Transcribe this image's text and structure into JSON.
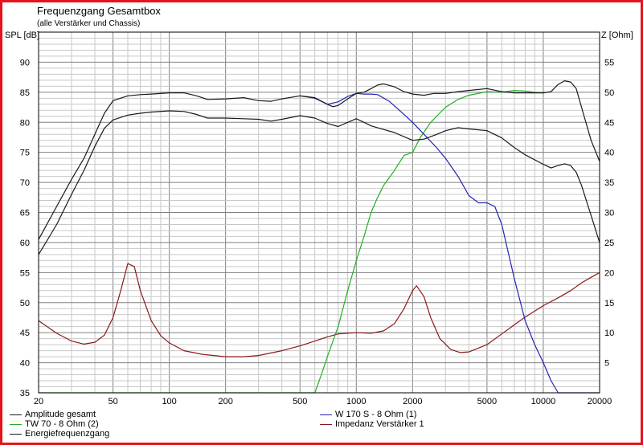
{
  "chart_data": {
    "type": "line",
    "title": "Frequenzgang Gesamtbox",
    "subtitle": "(alle Verstärker und Chassis)",
    "x_scale": "log",
    "xlim": [
      20,
      20000
    ],
    "ylabel_left": "SPL [dB]",
    "ylabel_right": "Z [Ohm]",
    "ylim_left": [
      35,
      95
    ],
    "ylim_right": [
      0,
      60
    ],
    "x_ticks": [
      "20",
      "50",
      "100",
      "200",
      "500",
      "1000",
      "2000",
      "5000",
      "10000",
      "20000"
    ],
    "y_ticks_left": [
      "35",
      "40",
      "45",
      "50",
      "55",
      "60",
      "65",
      "70",
      "75",
      "80",
      "85",
      "90"
    ],
    "y_ticks_right": [
      "5",
      "10",
      "15",
      "20",
      "25",
      "30",
      "35",
      "40",
      "45",
      "50",
      "55"
    ],
    "grid": true,
    "legend_position": "bottom",
    "series": [
      {
        "name": "Amplitude gesamt",
        "axis": "left",
        "color": "#1a1a1a",
        "points": [
          [
            20,
            58
          ],
          [
            25,
            63
          ],
          [
            30,
            68
          ],
          [
            35,
            72
          ],
          [
            40,
            76
          ],
          [
            45,
            79
          ],
          [
            50,
            80.4
          ],
          [
            60,
            81.2
          ],
          [
            70,
            81.5
          ],
          [
            80,
            81.7
          ],
          [
            100,
            81.9
          ],
          [
            120,
            81.8
          ],
          [
            140,
            81.3
          ],
          [
            160,
            80.7
          ],
          [
            200,
            80.7
          ],
          [
            250,
            80.6
          ],
          [
            300,
            80.5
          ],
          [
            350,
            80.2
          ],
          [
            400,
            80.5
          ],
          [
            500,
            81.1
          ],
          [
            600,
            80.7
          ],
          [
            700,
            79.8
          ],
          [
            800,
            79.3
          ],
          [
            900,
            80.0
          ],
          [
            1000,
            80.6
          ],
          [
            1100,
            80.0
          ],
          [
            1200,
            79.4
          ],
          [
            1400,
            78.8
          ],
          [
            1600,
            78.3
          ],
          [
            1800,
            77.6
          ],
          [
            2000,
            77.0
          ],
          [
            2300,
            77.2
          ],
          [
            2700,
            78.0
          ],
          [
            3000,
            78.6
          ],
          [
            3500,
            79.1
          ],
          [
            4000,
            78.9
          ],
          [
            5000,
            78.6
          ],
          [
            6000,
            77.4
          ],
          [
            7000,
            75.8
          ],
          [
            8000,
            74.6
          ],
          [
            10000,
            73.0
          ],
          [
            11000,
            72.4
          ],
          [
            12000,
            72.8
          ],
          [
            13000,
            73.1
          ],
          [
            14000,
            72.8
          ],
          [
            15000,
            71.7
          ],
          [
            16000,
            69.5
          ],
          [
            18000,
            64.5
          ],
          [
            20000,
            60
          ]
        ]
      },
      {
        "name": "Energiefrequenzgang",
        "axis": "left",
        "color": "#1a1a1a",
        "points": [
          [
            20,
            60.5
          ],
          [
            25,
            66
          ],
          [
            30,
            70.5
          ],
          [
            35,
            74
          ],
          [
            40,
            78
          ],
          [
            45,
            81.5
          ],
          [
            50,
            83.6
          ],
          [
            60,
            84.4
          ],
          [
            70,
            84.6
          ],
          [
            80,
            84.7
          ],
          [
            100,
            84.9
          ],
          [
            120,
            84.9
          ],
          [
            140,
            84.4
          ],
          [
            160,
            83.8
          ],
          [
            200,
            83.9
          ],
          [
            250,
            84.1
          ],
          [
            300,
            83.6
          ],
          [
            350,
            83.5
          ],
          [
            400,
            83.9
          ],
          [
            500,
            84.4
          ],
          [
            600,
            84.1
          ],
          [
            700,
            83.0
          ],
          [
            750,
            82.6
          ],
          [
            800,
            82.8
          ],
          [
            900,
            83.9
          ],
          [
            1000,
            84.8
          ],
          [
            1100,
            85.0
          ],
          [
            1200,
            85.6
          ],
          [
            1300,
            86.2
          ],
          [
            1400,
            86.4
          ],
          [
            1600,
            85.9
          ],
          [
            1800,
            85.1
          ],
          [
            2000,
            84.7
          ],
          [
            2300,
            84.5
          ],
          [
            2600,
            84.8
          ],
          [
            3000,
            84.8
          ],
          [
            3500,
            85.1
          ],
          [
            4000,
            85.3
          ],
          [
            5000,
            85.6
          ],
          [
            6000,
            85.1
          ],
          [
            7000,
            84.9
          ],
          [
            8000,
            84.9
          ],
          [
            10000,
            84.9
          ],
          [
            11000,
            85.1
          ],
          [
            12000,
            86.3
          ],
          [
            13000,
            86.9
          ],
          [
            14000,
            86.7
          ],
          [
            15000,
            85.6
          ],
          [
            16000,
            82.5
          ],
          [
            18000,
            77.0
          ],
          [
            20000,
            73.5
          ]
        ]
      },
      {
        "name": "W 170 S - 8 Ohm (1)",
        "axis": "left",
        "color": "#2424b8",
        "points": [
          [
            500,
            84.4
          ],
          [
            600,
            84.0
          ],
          [
            700,
            83.0
          ],
          [
            800,
            83.4
          ],
          [
            900,
            84.3
          ],
          [
            1000,
            84.8
          ],
          [
            1100,
            84.7
          ],
          [
            1200,
            84.7
          ],
          [
            1300,
            84.6
          ],
          [
            1500,
            83.5
          ],
          [
            1700,
            82.0
          ],
          [
            2000,
            80.0
          ],
          [
            2300,
            78.0
          ],
          [
            2700,
            75.7
          ],
          [
            3000,
            74.0
          ],
          [
            3500,
            71.0
          ],
          [
            4000,
            67.8
          ],
          [
            4500,
            66.6
          ],
          [
            5000,
            66.6
          ],
          [
            5500,
            66.0
          ],
          [
            6000,
            63.0
          ],
          [
            7000,
            54.0
          ],
          [
            8000,
            47.0
          ],
          [
            9000,
            43.0
          ],
          [
            10000,
            40.0
          ],
          [
            11000,
            37.0
          ],
          [
            12000,
            35.0
          ],
          [
            20000,
            35.0
          ]
        ]
      },
      {
        "name": "TW 70 - 8 Ohm (2)",
        "axis": "left",
        "color": "#22b022",
        "points": [
          [
            20,
            35
          ],
          [
            600,
            35
          ],
          [
            650,
            38.0
          ],
          [
            700,
            41.0
          ],
          [
            800,
            46.0
          ],
          [
            900,
            52.0
          ],
          [
            1000,
            57.0
          ],
          [
            1100,
            61.0
          ],
          [
            1200,
            65.0
          ],
          [
            1300,
            67.5
          ],
          [
            1400,
            69.5
          ],
          [
            1600,
            72.0
          ],
          [
            1800,
            74.5
          ],
          [
            2000,
            75.0
          ],
          [
            2200,
            77.5
          ],
          [
            2500,
            80.0
          ],
          [
            3000,
            82.5
          ],
          [
            3500,
            83.8
          ],
          [
            4000,
            84.5
          ],
          [
            5000,
            85.1
          ],
          [
            6000,
            85.0
          ],
          [
            7000,
            85.3
          ],
          [
            8000,
            85.2
          ],
          [
            9000,
            85.0
          ],
          [
            10000,
            84.9
          ]
        ]
      },
      {
        "name": "Impedanz Verstärker 1",
        "axis": "right",
        "color": "#8a1a1a",
        "points": [
          [
            20,
            12.0
          ],
          [
            25,
            9.9
          ],
          [
            30,
            8.6
          ],
          [
            35,
            8.1
          ],
          [
            40,
            8.4
          ],
          [
            45,
            9.6
          ],
          [
            50,
            12.5
          ],
          [
            55,
            17.0
          ],
          [
            60,
            21.5
          ],
          [
            65,
            21.0
          ],
          [
            70,
            17.0
          ],
          [
            80,
            12.0
          ],
          [
            90,
            9.5
          ],
          [
            100,
            8.3
          ],
          [
            120,
            7.0
          ],
          [
            150,
            6.4
          ],
          [
            200,
            6.0
          ],
          [
            250,
            6.0
          ],
          [
            300,
            6.2
          ],
          [
            400,
            7.0
          ],
          [
            500,
            7.8
          ],
          [
            600,
            8.6
          ],
          [
            700,
            9.3
          ],
          [
            800,
            9.8
          ],
          [
            1000,
            10.0
          ],
          [
            1200,
            9.9
          ],
          [
            1400,
            10.3
          ],
          [
            1600,
            11.5
          ],
          [
            1800,
            14.0
          ],
          [
            2000,
            17.0
          ],
          [
            2100,
            17.8
          ],
          [
            2300,
            16.0
          ],
          [
            2500,
            12.5
          ],
          [
            2800,
            9.0
          ],
          [
            3200,
            7.2
          ],
          [
            3600,
            6.7
          ],
          [
            4000,
            6.8
          ],
          [
            5000,
            8.0
          ],
          [
            6000,
            9.8
          ],
          [
            7000,
            11.3
          ],
          [
            8000,
            12.6
          ],
          [
            10000,
            14.5
          ],
          [
            12000,
            15.8
          ],
          [
            14000,
            17.0
          ],
          [
            16000,
            18.3
          ],
          [
            18000,
            19.2
          ],
          [
            20000,
            20.0
          ]
        ]
      }
    ]
  }
}
